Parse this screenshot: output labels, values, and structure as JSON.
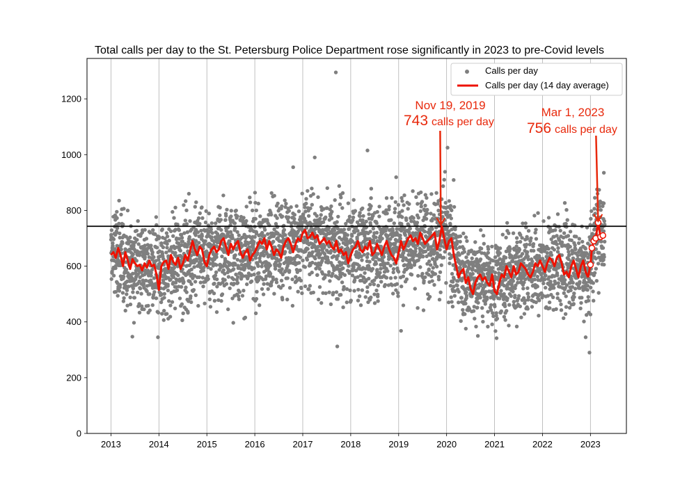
{
  "chart_data": {
    "type": "scatter",
    "title": "Total calls per day to the St. Petersburg Police Department rose significantly in 2023 to pre-Covid levels",
    "xlabel": "",
    "ylabel": "",
    "x_ticks": [
      "2013",
      "2014",
      "2015",
      "2016",
      "2017",
      "2018",
      "2019",
      "2020",
      "2021",
      "2022",
      "2023"
    ],
    "y_ticks": [
      "0",
      "200",
      "400",
      "600",
      "800",
      "1000",
      "1200"
    ],
    "xlim": [
      2012.5,
      2023.75
    ],
    "ylim": [
      0,
      1345
    ],
    "grid": "vertical",
    "legend_position": "top-right",
    "colors": {
      "scatter": "#7f7f7f",
      "average": "#ee1100",
      "annotation": "#e8280b",
      "reference": "#000000"
    },
    "reference_line": {
      "y": 743
    },
    "series": [
      {
        "name": "Calls per day",
        "kind": "scatter",
        "trend": [
          [
            2013.0,
            640
          ],
          [
            2013.1,
            650
          ],
          [
            2013.25,
            620
          ],
          [
            2013.4,
            610
          ],
          [
            2013.6,
            600
          ],
          [
            2013.9,
            590
          ],
          [
            2014.0,
            560
          ],
          [
            2014.2,
            600
          ],
          [
            2014.4,
            620
          ],
          [
            2014.6,
            630
          ],
          [
            2014.8,
            660
          ],
          [
            2015.0,
            640
          ],
          [
            2015.3,
            660
          ],
          [
            2015.6,
            670
          ],
          [
            2015.8,
            640
          ],
          [
            2016.0,
            650
          ],
          [
            2016.3,
            660
          ],
          [
            2016.6,
            670
          ],
          [
            2016.8,
            680
          ],
          [
            2017.0,
            700
          ],
          [
            2017.3,
            690
          ],
          [
            2017.6,
            680
          ],
          [
            2017.9,
            650
          ],
          [
            2018.0,
            660
          ],
          [
            2018.3,
            660
          ],
          [
            2018.6,
            660
          ],
          [
            2019.0,
            680
          ],
          [
            2019.3,
            700
          ],
          [
            2019.6,
            690
          ],
          [
            2019.88,
            710
          ],
          [
            2020.0,
            690
          ],
          [
            2020.15,
            640
          ],
          [
            2020.3,
            570
          ],
          [
            2020.5,
            540
          ],
          [
            2020.8,
            560
          ],
          [
            2021.0,
            540
          ],
          [
            2021.3,
            570
          ],
          [
            2021.6,
            590
          ],
          [
            2021.9,
            590
          ],
          [
            2022.0,
            590
          ],
          [
            2022.3,
            610
          ],
          [
            2022.6,
            610
          ],
          [
            2022.9,
            580
          ],
          [
            2023.0,
            620
          ],
          [
            2023.1,
            680
          ],
          [
            2023.16,
            740
          ],
          [
            2023.3,
            710
          ]
        ],
        "outliers": [
          [
            2017.69,
            1295
          ],
          [
            2017.72,
            312
          ],
          [
            2018.35,
            1015
          ],
          [
            2019.05,
            368
          ],
          [
            2020.02,
            1025
          ],
          [
            2022.98,
            290
          ],
          [
            2022.9,
            345
          ],
          [
            2013.98,
            345
          ],
          [
            2016.8,
            955
          ],
          [
            2017.25,
            990
          ],
          [
            2019.95,
            910
          ],
          [
            2023.28,
            935
          ]
        ]
      },
      {
        "name": "Calls per day (14 day average)",
        "kind": "line",
        "x": [
          2013.0,
          2013.05,
          2013.1,
          2013.15,
          2013.2,
          2013.25,
          2013.3,
          2013.35,
          2013.4,
          2013.45,
          2013.5,
          2013.55,
          2013.6,
          2013.65,
          2013.7,
          2013.75,
          2013.8,
          2013.85,
          2013.9,
          2013.95,
          2014.0,
          2014.05,
          2014.1,
          2014.15,
          2014.2,
          2014.25,
          2014.3,
          2014.35,
          2014.4,
          2014.45,
          2014.5,
          2014.55,
          2014.6,
          2014.65,
          2014.7,
          2014.75,
          2014.8,
          2014.85,
          2014.9,
          2014.95,
          2015.0,
          2015.05,
          2015.1,
          2015.15,
          2015.2,
          2015.25,
          2015.3,
          2015.35,
          2015.4,
          2015.45,
          2015.5,
          2015.55,
          2015.6,
          2015.65,
          2015.7,
          2015.75,
          2015.8,
          2015.85,
          2015.9,
          2015.95,
          2016.0,
          2016.05,
          2016.1,
          2016.15,
          2016.2,
          2016.25,
          2016.3,
          2016.35,
          2016.4,
          2016.45,
          2016.5,
          2016.55,
          2016.6,
          2016.65,
          2016.7,
          2016.75,
          2016.8,
          2016.85,
          2016.9,
          2016.95,
          2017.0,
          2017.05,
          2017.1,
          2017.15,
          2017.2,
          2017.25,
          2017.3,
          2017.35,
          2017.4,
          2017.45,
          2017.5,
          2017.55,
          2017.6,
          2017.65,
          2017.7,
          2017.75,
          2017.8,
          2017.85,
          2017.9,
          2017.95,
          2018.0,
          2018.05,
          2018.1,
          2018.15,
          2018.2,
          2018.25,
          2018.3,
          2018.35,
          2018.4,
          2018.45,
          2018.5,
          2018.55,
          2018.6,
          2018.65,
          2018.7,
          2018.75,
          2018.8,
          2018.85,
          2018.9,
          2018.95,
          2019.0,
          2019.05,
          2019.1,
          2019.15,
          2019.2,
          2019.25,
          2019.3,
          2019.35,
          2019.4,
          2019.45,
          2019.5,
          2019.55,
          2019.6,
          2019.65,
          2019.7,
          2019.75,
          2019.8,
          2019.85,
          2019.9,
          2019.95,
          2020.0,
          2020.05,
          2020.1,
          2020.15,
          2020.2,
          2020.25,
          2020.3,
          2020.35,
          2020.4,
          2020.45,
          2020.5,
          2020.55,
          2020.6,
          2020.65,
          2020.7,
          2020.75,
          2020.8,
          2020.85,
          2020.9,
          2020.95,
          2021.0,
          2021.05,
          2021.1,
          2021.15,
          2021.2,
          2021.25,
          2021.3,
          2021.35,
          2021.4,
          2021.45,
          2021.5,
          2021.55,
          2021.6,
          2021.65,
          2021.7,
          2021.75,
          2021.8,
          2021.85,
          2021.9,
          2021.95,
          2022.0,
          2022.05,
          2022.1,
          2022.15,
          2022.2,
          2022.25,
          2022.3,
          2022.35,
          2022.4,
          2022.45,
          2022.5,
          2022.55,
          2022.6,
          2022.65,
          2022.7,
          2022.75,
          2022.8,
          2022.85,
          2022.9,
          2022.95
        ],
        "values": [
          640,
          650,
          630,
          665,
          640,
          600,
          650,
          620,
          590,
          625,
          610,
          600,
          605,
          585,
          610,
          595,
          620,
          600,
          605,
          570,
          515,
          600,
          615,
          620,
          590,
          640,
          615,
          605,
          630,
          590,
          610,
          640,
          620,
          655,
          690,
          660,
          640,
          670,
          660,
          615,
          600,
          640,
          660,
          670,
          650,
          660,
          690,
          700,
          670,
          640,
          680,
          660,
          680,
          690,
          650,
          630,
          650,
          660,
          620,
          640,
          650,
          670,
          690,
          680,
          700,
          660,
          690,
          670,
          640,
          660,
          650,
          630,
          670,
          690,
          700,
          680,
          650,
          680,
          700,
          690,
          720,
          730,
          700,
          705,
          720,
          700,
          710,
          680,
          690,
          700,
          680,
          690,
          670,
          660,
          690,
          650,
          660,
          640,
          650,
          610,
          640,
          660,
          670,
          690,
          660,
          650,
          670,
          660,
          690,
          640,
          650,
          680,
          660,
          640,
          670,
          690,
          660,
          640,
          630,
          610,
          650,
          690,
          660,
          680,
          700,
          710,
          690,
          700,
          680,
          720,
          700,
          680,
          690,
          700,
          710,
          720,
          660,
          690,
          743,
          700,
          660,
          690,
          700,
          640,
          600,
          560,
          580,
          590,
          540,
          560,
          520,
          500,
          540,
          560,
          570,
          550,
          560,
          540,
          530,
          570,
          510,
          500,
          540,
          570,
          560,
          600,
          580,
          560,
          600,
          570,
          580,
          610,
          600,
          590,
          570,
          560,
          580,
          610,
          600,
          620,
          600,
          580,
          610,
          630,
          620,
          600,
          630,
          640,
          610,
          570,
          580,
          560,
          600,
          620,
          590,
          560,
          600,
          620,
          580,
          560
        ]
      },
      {
        "name": "",
        "kind": "markers",
        "x": [
          2023.0,
          2023.03,
          2023.07,
          2023.11,
          2023.16,
          2023.21,
          2023.26
        ],
        "values": [
          605,
          665,
          690,
          700,
          756,
          705,
          710
        ]
      }
    ],
    "annotations": [
      {
        "date": "Nov 19, 2019",
        "value": "743",
        "text": "calls per day",
        "x": 2019.88,
        "y": 743
      },
      {
        "date": "Mar 1, 2023",
        "value": "756",
        "text": "calls per day",
        "x": 2023.16,
        "y": 756
      }
    ]
  }
}
